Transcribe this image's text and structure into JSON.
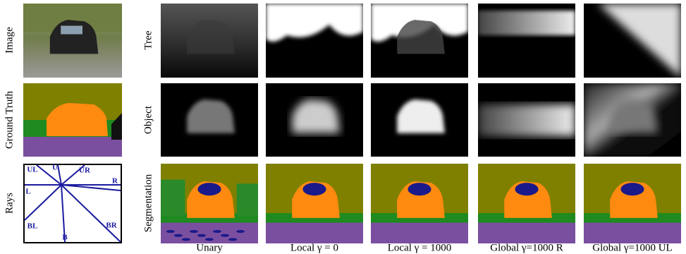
{
  "left_rows": [
    "Image",
    "Ground Truth",
    "Rays"
  ],
  "rays": [
    "UL",
    "U",
    "UR",
    "L",
    "R",
    "BL",
    "B",
    "BR"
  ],
  "row_labels": [
    "Tree",
    "Object",
    "Segmentation"
  ],
  "columns": [
    "Unary",
    "Local γ = 0",
    "Local γ = 1000",
    "Global γ=1000 R",
    "Global γ=1000 UL"
  ]
}
